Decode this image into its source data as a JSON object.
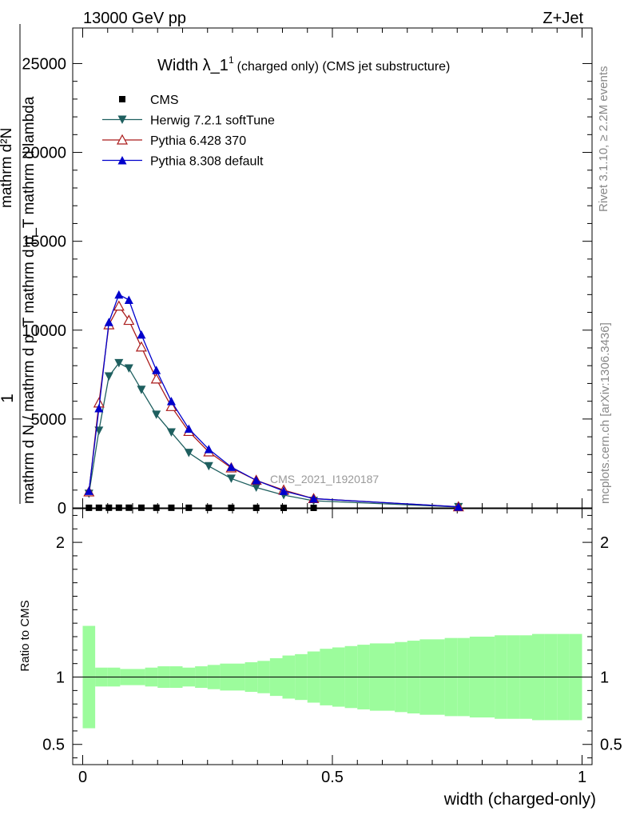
{
  "header": {
    "energy_label": "13000 GeV pp",
    "process_label": "Z+Jet"
  },
  "side_labels": {
    "rivet": "Rivet 3.1.10, ≥ 2.2M events",
    "mcplots": "mcplots.cern.ch [arXiv:1306.3436]"
  },
  "chart_data": [
    {
      "type": "line",
      "title": "Width λ_1",
      "title_sup": "1",
      "subtitle": "(charged only) (CMS jet substructure)",
      "ylabel": {
        "prefix": "1",
        "line1": "mathrm d N / mathrm d p_T mathrm d p_T mathrm d lambda",
        "numerator": "mathrm d²N",
        "denominator": "mathrm d p_T mathrm d p_T mathrm d lambda"
      },
      "watermark": "CMS_2021_I1920187",
      "xlim": [
        -0.02,
        1.02
      ],
      "ylim": [
        0,
        27000
      ],
      "yticks": [
        0,
        5000,
        10000,
        15000,
        20000,
        25000
      ],
      "ytick_labels": [
        "0",
        "5000",
        "10000",
        "15000",
        "20000",
        "25000"
      ],
      "legend_position": "top-left",
      "series": [
        {
          "name": "CMS",
          "color": "#000000",
          "marker": "square",
          "x": [
            0.0125,
            0.0325,
            0.0525,
            0.0725,
            0.0925,
            0.1175,
            0.1475,
            0.1775,
            0.2125,
            0.2525,
            0.2975,
            0.3475,
            0.4025,
            0.4625
          ],
          "y": [
            5,
            8,
            9,
            10,
            10,
            9,
            8,
            7,
            6,
            5,
            4,
            3,
            2,
            1
          ]
        },
        {
          "name": "Herwig 7.2.1 softTune",
          "color": "#1e5f5f",
          "marker": "triangle-down",
          "x": [
            0.0125,
            0.0325,
            0.0525,
            0.0725,
            0.0925,
            0.1175,
            0.1475,
            0.1775,
            0.2125,
            0.2525,
            0.2975,
            0.3475,
            0.4025,
            0.4625,
            0.7525
          ],
          "y": [
            800,
            4350,
            7400,
            8150,
            7850,
            6650,
            5250,
            4250,
            3100,
            2350,
            1650,
            1150,
            720,
            400,
            50
          ]
        },
        {
          "name": "Pythia 6.428 370",
          "color": "#aa1a1a",
          "marker": "triangle-open",
          "x": [
            0.0125,
            0.0325,
            0.0525,
            0.0725,
            0.0925,
            0.1175,
            0.1475,
            0.1775,
            0.2125,
            0.2525,
            0.2975,
            0.3475,
            0.4025,
            0.4625,
            0.7525
          ],
          "y": [
            900,
            5900,
            10300,
            11350,
            10550,
            9050,
            7250,
            5700,
            4300,
            3150,
            2250,
            1550,
            1000,
            520,
            60
          ]
        },
        {
          "name": "Pythia 8.308 default",
          "color": "#0000cc",
          "marker": "triangle-up",
          "x": [
            0.0125,
            0.0325,
            0.0525,
            0.0725,
            0.0925,
            0.1175,
            0.1475,
            0.1775,
            0.2125,
            0.2525,
            0.2975,
            0.3475,
            0.4025,
            0.4625,
            0.7525
          ],
          "y": [
            950,
            5600,
            10450,
            12000,
            11700,
            9750,
            7750,
            6000,
            4450,
            3300,
            2300,
            1550,
            950,
            520,
            60
          ]
        }
      ]
    },
    {
      "type": "area",
      "ylabel": "Ratio to CMS",
      "xlabel": "width (charged-only)",
      "xlim": [
        -0.02,
        1.02
      ],
      "ylim": [
        0.35,
        2.25
      ],
      "yticks": [
        0.5,
        1,
        2
      ],
      "ytick_labels": [
        "0.5",
        "1",
        "2"
      ],
      "xticks": [
        0,
        0.5,
        1
      ],
      "xtick_labels": [
        "0",
        "0.5",
        "1"
      ],
      "reference_line": 1,
      "bins": [
        0.0,
        0.025,
        0.05,
        0.075,
        0.1,
        0.125,
        0.15,
        0.175,
        0.2,
        0.225,
        0.25,
        0.275,
        0.3,
        0.325,
        0.35,
        0.375,
        0.4,
        0.425,
        0.45,
        0.475,
        0.5,
        0.525,
        0.55,
        0.575,
        0.6,
        0.625,
        0.65,
        0.675,
        0.7,
        0.725,
        0.75,
        0.775,
        0.8,
        0.825,
        0.85,
        0.875,
        0.9,
        0.925,
        0.95,
        0.975,
        1.0
      ],
      "bands": [
        {
          "name": "stat",
          "color": "#9cfc9c",
          "edges": [
            0.0,
            0.025,
            0.05,
            0.075,
            0.1,
            0.125,
            0.15,
            0.175,
            0.2,
            0.225,
            0.25,
            0.275,
            0.3,
            0.325,
            0.35,
            0.375,
            0.4,
            0.425,
            0.45,
            0.475,
            0.5,
            0.525,
            0.55,
            0.575,
            0.6,
            0.625,
            0.65,
            0.675,
            0.7,
            0.725,
            0.75,
            0.775,
            0.8,
            0.825,
            0.85,
            0.875,
            0.9,
            0.925,
            0.95,
            0.975,
            1.0
          ],
          "lo": [
            0.62,
            0.93,
            0.93,
            0.94,
            0.94,
            0.93,
            0.92,
            0.92,
            0.93,
            0.92,
            0.91,
            0.9,
            0.9,
            0.89,
            0.88,
            0.86,
            0.84,
            0.83,
            0.81,
            0.79,
            0.78,
            0.77,
            0.76,
            0.75,
            0.75,
            0.74,
            0.73,
            0.72,
            0.72,
            0.71,
            0.71,
            0.7,
            0.7,
            0.69,
            0.69,
            0.69,
            0.68,
            0.68,
            0.68,
            0.68
          ],
          "hi": [
            1.38,
            1.07,
            1.07,
            1.06,
            1.06,
            1.07,
            1.08,
            1.08,
            1.07,
            1.08,
            1.09,
            1.1,
            1.1,
            1.11,
            1.12,
            1.14,
            1.16,
            1.17,
            1.19,
            1.21,
            1.22,
            1.23,
            1.24,
            1.25,
            1.25,
            1.26,
            1.27,
            1.28,
            1.28,
            1.29,
            1.29,
            1.3,
            1.3,
            1.31,
            1.31,
            1.31,
            1.32,
            1.32,
            1.32,
            1.32
          ]
        }
      ]
    }
  ]
}
